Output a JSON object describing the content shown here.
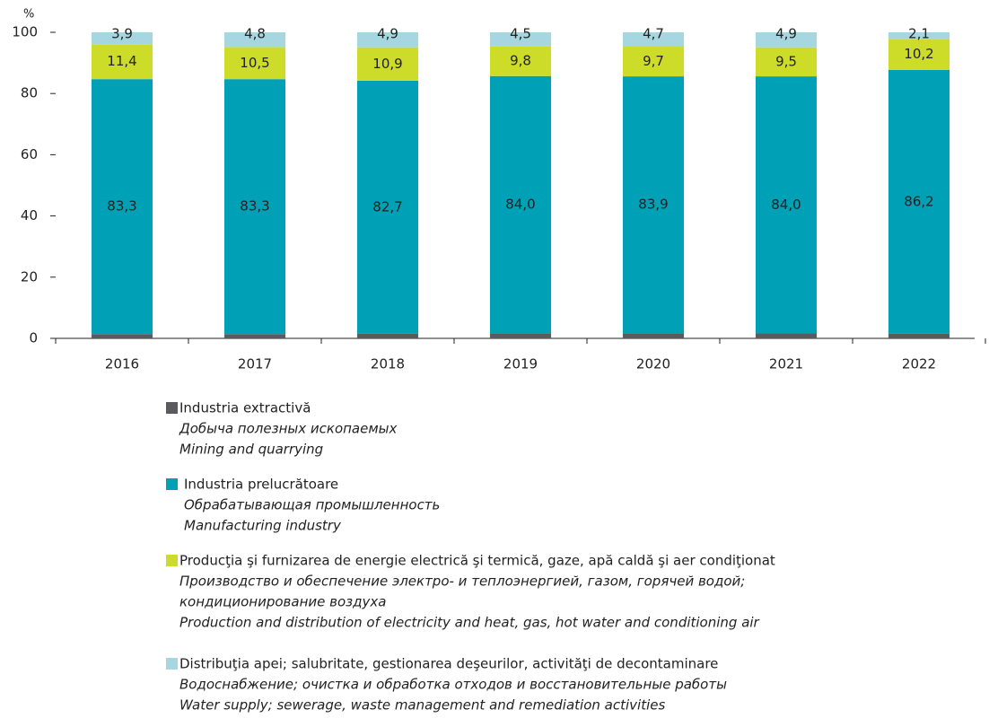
{
  "chart_data": {
    "type": "stacked_bar",
    "y_label": "%",
    "categories": [
      "2016",
      "2017",
      "2018",
      "2019",
      "2020",
      "2021",
      "2022"
    ],
    "ylim": [
      0,
      100
    ],
    "yticks": [
      0,
      20,
      40,
      60,
      80,
      100
    ],
    "series": [
      {
        "name": "Industria extractivă",
        "name_ru": [
          "Добыча полезных ископаемых"
        ],
        "name_en": "Mining and quarrying",
        "color": "#5b5b5d",
        "values": [
          1.4,
          1.4,
          1.5,
          1.7,
          1.7,
          1.6,
          1.5
        ],
        "value_labels": [
          "1,4",
          "1,4",
          "1,5",
          "1,7",
          "1,7",
          "1,6",
          "1,5"
        ]
      },
      {
        "name": "Industria prelucrătoare",
        "name_ru": [
          "Обрабатывающая промышленность"
        ],
        "name_en": "Manufacturing industry",
        "color": "#00a0b6",
        "values": [
          83.3,
          83.3,
          82.7,
          84.0,
          83.9,
          84.0,
          86.2
        ],
        "value_labels": [
          "83,3",
          "83,3",
          "82,7",
          "84,0",
          "83,9",
          "84,0",
          "86,2"
        ]
      },
      {
        "name": "Producţia şi furnizarea de energie electrică şi termică, gaze, apă caldă şi aer condiţionat",
        "name_ru": [
          "Производство и обеспечение электро- и теплоэнергией, газом, горячей водой;",
          "кондиционирование воздуха"
        ],
        "name_en": "Production and distribution of electricity and heat, gas, hot water and conditioning air",
        "color": "#cddc29",
        "values": [
          11.4,
          10.5,
          10.9,
          9.8,
          9.7,
          9.5,
          10.2
        ],
        "value_labels": [
          "11,4",
          "10,5",
          "10,9",
          "9,8",
          "9,7",
          "9,5",
          "10,2"
        ]
      },
      {
        "name": "Distribuţia apei; salubritate, gestionarea deşeurilor, activităţi de decontaminare",
        "name_ru": [
          "Водоснабжение; очистка и обработка отходов и восстановительные работы"
        ],
        "name_en": "Water supply; sewerage, waste management and remediation activities",
        "color": "#a6d6df",
        "values": [
          3.9,
          4.8,
          4.9,
          4.5,
          4.7,
          4.9,
          2.1
        ],
        "value_labels": [
          "3,9",
          "4,8",
          "4,9",
          "4,5",
          "4,7",
          "4,9",
          "2,1"
        ]
      }
    ]
  }
}
